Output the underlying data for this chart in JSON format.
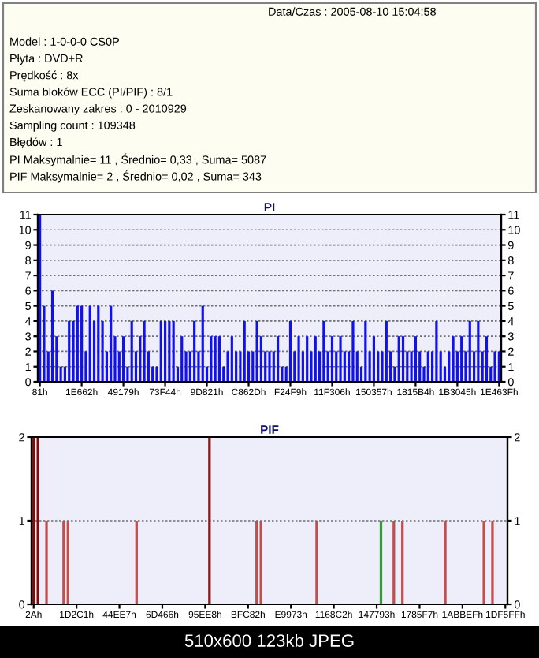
{
  "chart_data": [
    {
      "type": "other",
      "annotations": [
        "Data/Czas : 2005-08-10 15:04:58",
        "Model : 1-0-0-0 CS0P",
        "Płyta : DVD+R",
        "Prędkość : 8x",
        "Suma bloków ECC (PI/PIF) : 8/1",
        "Zeskanowany zakres : 0 - 2010929",
        "Sampling count : 109348",
        "Błędów : 1",
        "PI Maksymalnie= 11 , Średnio= 0,33 , Suma= 5087",
        "PIF Maksymalnie= 2 , Średnio= 0,02 , Suma= 343"
      ]
    },
    {
      "type": "bar",
      "title": "PI",
      "color": "#1010f0",
      "categories": [
        "81h",
        null,
        null,
        null,
        null,
        null,
        null,
        null,
        null,
        null,
        "1E662h",
        null,
        null,
        null,
        null,
        null,
        null,
        null,
        null,
        null,
        "49179h",
        null,
        null,
        null,
        null,
        null,
        null,
        null,
        null,
        null,
        "73F44h",
        null,
        null,
        null,
        null,
        null,
        null,
        null,
        null,
        null,
        "9D821h",
        null,
        null,
        null,
        null,
        null,
        null,
        null,
        null,
        null,
        "C862Dh",
        null,
        null,
        null,
        null,
        null,
        null,
        null,
        null,
        null,
        "F24F9h",
        null,
        null,
        null,
        null,
        null,
        null,
        null,
        null,
        null,
        "11F306h",
        null,
        null,
        null,
        null,
        null,
        null,
        null,
        null,
        null,
        "150357h",
        null,
        null,
        null,
        null,
        null,
        null,
        null,
        null,
        null,
        "1815B4h",
        null,
        null,
        null,
        null,
        null,
        null,
        null,
        null,
        null,
        "1B3045h",
        null,
        null,
        null,
        null,
        null,
        null,
        null,
        null,
        null,
        "1E463Fh"
      ],
      "values": [
        11,
        5,
        2,
        6,
        3,
        1,
        1,
        4,
        4,
        5,
        5,
        2,
        5,
        4,
        5,
        4,
        2,
        5,
        3,
        2,
        3,
        1,
        4,
        2,
        3,
        4,
        2,
        1,
        1,
        4,
        4,
        4,
        4,
        1,
        3,
        2,
        2,
        4,
        2,
        5,
        1,
        3,
        3,
        3,
        1,
        2,
        3,
        2,
        2,
        4,
        2,
        2,
        4,
        3,
        2,
        2,
        2,
        3,
        1,
        1,
        4,
        2,
        3,
        2,
        3,
        2,
        3,
        2,
        4,
        2,
        3,
        2,
        3,
        2,
        2,
        4,
        2,
        1,
        4,
        2,
        3,
        2,
        2,
        4,
        2,
        1,
        3,
        3,
        2,
        2,
        3,
        2,
        1,
        2,
        2,
        4,
        2,
        1,
        2,
        3,
        2,
        3,
        2,
        4,
        2,
        4,
        2,
        3,
        1,
        2,
        2
      ],
      "ylim": [
        0,
        11
      ],
      "yticks": [
        0,
        1,
        2,
        3,
        4,
        5,
        6,
        7,
        8,
        9,
        10,
        11
      ],
      "y2lim": [
        0,
        11
      ],
      "y2ticks": [
        0,
        1,
        2,
        3,
        4,
        5,
        6,
        7,
        8,
        9,
        10,
        11
      ],
      "grid": "y"
    },
    {
      "type": "bar",
      "title": "PIF",
      "categories": [
        "2Ah",
        null,
        null,
        null,
        null,
        null,
        null,
        null,
        null,
        null,
        "1D2C1h",
        null,
        null,
        null,
        null,
        null,
        null,
        null,
        null,
        null,
        "44EE7h",
        null,
        null,
        null,
        null,
        null,
        null,
        null,
        null,
        null,
        "6D466h",
        null,
        null,
        null,
        null,
        null,
        null,
        null,
        null,
        null,
        "95EE8h",
        null,
        null,
        null,
        null,
        null,
        null,
        null,
        null,
        null,
        "BFC82h",
        null,
        null,
        null,
        null,
        null,
        null,
        null,
        null,
        null,
        "E9973h",
        null,
        null,
        null,
        null,
        null,
        null,
        null,
        null,
        null,
        "1168C2h",
        null,
        null,
        null,
        null,
        null,
        null,
        null,
        null,
        null,
        "147793h",
        null,
        null,
        null,
        null,
        null,
        null,
        null,
        null,
        null,
        "1785F7h",
        null,
        null,
        null,
        null,
        null,
        null,
        null,
        null,
        null,
        "1ABBEFh",
        null,
        null,
        null,
        null,
        null,
        null,
        null,
        null,
        null,
        "1DF5FFh"
      ],
      "values": [
        2,
        2,
        0,
        1,
        0,
        0,
        0,
        1,
        1,
        0,
        0,
        0,
        0,
        0,
        0,
        0,
        0,
        0,
        0,
        0,
        0,
        0,
        0,
        0,
        1,
        0,
        0,
        0,
        0,
        0,
        0,
        0,
        0,
        0,
        0,
        0,
        0,
        0,
        0,
        0,
        0,
        2,
        0,
        0,
        0,
        0,
        0,
        0,
        0,
        0,
        0,
        0,
        1,
        1,
        0,
        0,
        0,
        0,
        0,
        0,
        0,
        0,
        0,
        0,
        0,
        0,
        1,
        0,
        0,
        0,
        0,
        0,
        0,
        0,
        0,
        0,
        0,
        0,
        0,
        0,
        0,
        1,
        0,
        0,
        1,
        0,
        1,
        0,
        0,
        0,
        0,
        0,
        0,
        0,
        0,
        0,
        1,
        0,
        0,
        0,
        0,
        0,
        0,
        0,
        0,
        1,
        0,
        1,
        0,
        0,
        0
      ],
      "colors": [
        "#7a0c0c",
        "#7a0c0c",
        "#c05050",
        "#c05050",
        "#c05050",
        "#c05050",
        "#c05050",
        "#c05050",
        "#c05050",
        "#c05050",
        "#c05050",
        "#c05050",
        "#c05050",
        "#c05050",
        "#c05050",
        "#c05050",
        "#c05050",
        "#c05050",
        "#c05050",
        "#c05050",
        "#c05050",
        "#c05050",
        "#c05050",
        "#c05050",
        "#c05050",
        "#c05050",
        "#c05050",
        "#c05050",
        "#c05050",
        "#c05050",
        "#c05050",
        "#c05050",
        "#c05050",
        "#c05050",
        "#c05050",
        "#c05050",
        "#c05050",
        "#c05050",
        "#c05050",
        "#c05050",
        "#c05050",
        "#8a1a1a",
        "#c05050",
        "#c05050",
        "#c05050",
        "#c05050",
        "#c05050",
        "#c05050",
        "#c05050",
        "#c05050",
        "#c05050",
        "#c05050",
        "#c05050",
        "#c05050",
        "#c05050",
        "#c05050",
        "#c05050",
        "#c05050",
        "#c05050",
        "#c05050",
        "#c05050",
        "#c05050",
        "#c05050",
        "#c05050",
        "#c05050",
        "#c05050",
        "#c05050",
        "#c05050",
        "#c05050",
        "#c05050",
        "#c05050",
        "#c05050",
        "#c05050",
        "#c05050",
        "#c05050",
        "#c05050",
        "#c05050",
        "#c05050",
        "#c05050",
        "#c05050",
        "#c05050",
        "#3a9a3a",
        "#c05050",
        "#c05050",
        "#c05050",
        "#c05050",
        "#c05050",
        "#c05050",
        "#c05050",
        "#c05050",
        "#c05050",
        "#c05050",
        "#c05050",
        "#c05050",
        "#c05050",
        "#c05050",
        "#c05050",
        "#c05050",
        "#c05050",
        "#c05050",
        "#c05050",
        "#c05050",
        "#c05050",
        "#c05050",
        "#c05050",
        "#c05050",
        "#c05050",
        "#c05050",
        "#c05050",
        "#c05050",
        "#c05050"
      ],
      "ylim": [
        0,
        2
      ],
      "yticks": [
        0,
        1,
        2
      ],
      "y2lim": [
        0,
        2
      ],
      "y2ticks": [
        0,
        1,
        2
      ],
      "grid": "y",
      "annotations": [
        "510x600 123kb JPEG"
      ]
    }
  ]
}
